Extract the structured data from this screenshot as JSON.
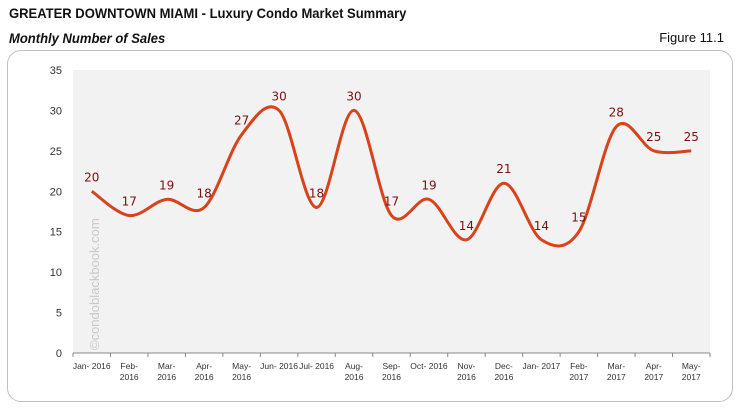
{
  "header": {
    "title": "GREATER DOWNTOWN MIAMI - Luxury Condo Market Summary",
    "subtitle": "Monthly Number of Sales",
    "figure": "Figure 11.1"
  },
  "watermark": "©condoblackbook.com",
  "colors": {
    "line": "#d8431c",
    "label": "#7a1010",
    "plot_bg": "#f2f2f2"
  },
  "chart_data": {
    "type": "line",
    "smooth": true,
    "categories": [
      [
        "Jan- 2016"
      ],
      [
        "Feb-",
        "2016"
      ],
      [
        "Mar-",
        "2016"
      ],
      [
        "Apr-",
        "2016"
      ],
      [
        "May-",
        "2016"
      ],
      [
        "Jun- 2016"
      ],
      [
        "Jul- 2016"
      ],
      [
        "Aug-",
        "2016"
      ],
      [
        "Sep-",
        "2016"
      ],
      [
        "Oct- 2016"
      ],
      [
        "Nov-",
        "2016"
      ],
      [
        "Dec-",
        "2016"
      ],
      [
        "Jan- 2017"
      ],
      [
        "Feb-",
        "2017"
      ],
      [
        "Mar-",
        "2017"
      ],
      [
        "Apr-",
        "2017"
      ],
      [
        "May-",
        "2017"
      ]
    ],
    "values": [
      20,
      17,
      19,
      18,
      27,
      30,
      18,
      30,
      17,
      19,
      14,
      21,
      14,
      15,
      28,
      25,
      25
    ],
    "ylim": [
      0,
      35
    ],
    "yticks": [
      0,
      5,
      10,
      15,
      20,
      25,
      30,
      35
    ],
    "grid": false,
    "data_labels": true
  }
}
